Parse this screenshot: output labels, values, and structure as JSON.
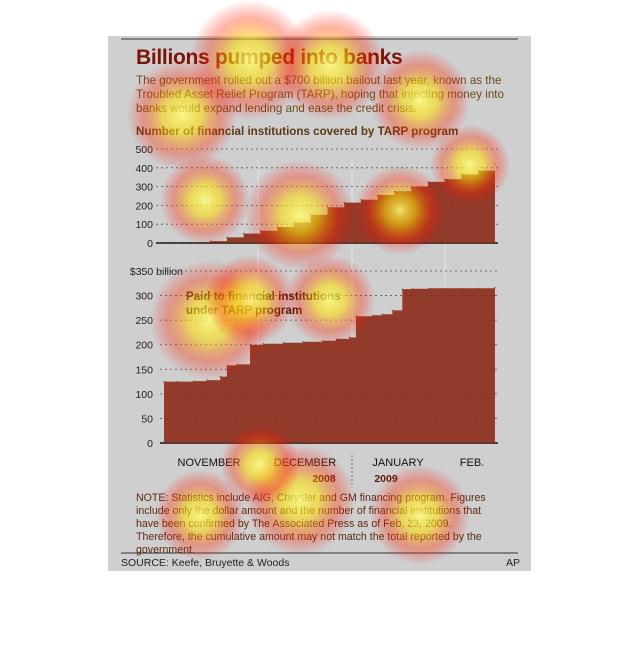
{
  "title": "Billions pumped into banks",
  "intro": "The government rolled out a $700 billion bailout last year, known as the Troubled Asset Relief Program (TARP), hoping that injecting money into banks would expand lending and ease the credit crisis.",
  "note": "NOTE: Statistics include AIG, Chrysler and GM financing program. Figures include only the dollar amount and the number of financial institutions that have been confirmed by The Associated Press as of Feb. 23, 2009. Therefore, the cumulative amount may not match the total reported by the government.",
  "source": "SOURCE: Keefe, Bruyette & Woods",
  "credit": "AP",
  "colors": {
    "area": "#8b2a17",
    "card": "#cfcfcf",
    "title": "#7a1408"
  },
  "months": [
    "NOVEMBER",
    "DECEMBER",
    "JANUARY",
    "FEB."
  ],
  "years": [
    "2008",
    "2009"
  ],
  "chart_data": [
    {
      "type": "area",
      "title": "Number of financial institutions covered by TARP program",
      "ylim": [
        0,
        500
      ],
      "yticks": [
        "0",
        "100",
        "200",
        "300",
        "400",
        "500"
      ],
      "x": [
        0,
        0.05,
        0.1,
        0.15,
        0.2,
        0.25,
        0.3,
        0.35,
        0.4,
        0.45,
        0.5,
        0.55,
        0.6,
        0.65,
        0.7,
        0.75,
        0.8,
        0.85,
        0.9,
        0.95,
        1.0
      ],
      "values": [
        0,
        0,
        0,
        10,
        30,
        50,
        65,
        85,
        110,
        150,
        190,
        215,
        230,
        255,
        275,
        300,
        325,
        340,
        365,
        385,
        420
      ],
      "grid": true
    },
    {
      "type": "area",
      "title": "Paid to financial institutions under TARP program",
      "ylim": [
        0,
        350
      ],
      "yticks": [
        "0",
        "50",
        "100",
        "150",
        "200",
        "250",
        "300",
        "$350 billion"
      ],
      "x": [
        0,
        0.04,
        0.09,
        0.13,
        0.17,
        0.19,
        0.22,
        0.26,
        0.3,
        0.36,
        0.42,
        0.48,
        0.52,
        0.56,
        0.58,
        0.63,
        0.66,
        0.69,
        0.72,
        0.75,
        0.8,
        0.85,
        0.9,
        0.95,
        1.0
      ],
      "values": [
        125,
        125,
        126,
        128,
        135,
        158,
        160,
        200,
        202,
        204,
        206,
        208,
        212,
        215,
        258,
        260,
        262,
        270,
        313,
        314,
        315,
        315,
        315,
        315,
        316
      ],
      "grid": true
    }
  ]
}
